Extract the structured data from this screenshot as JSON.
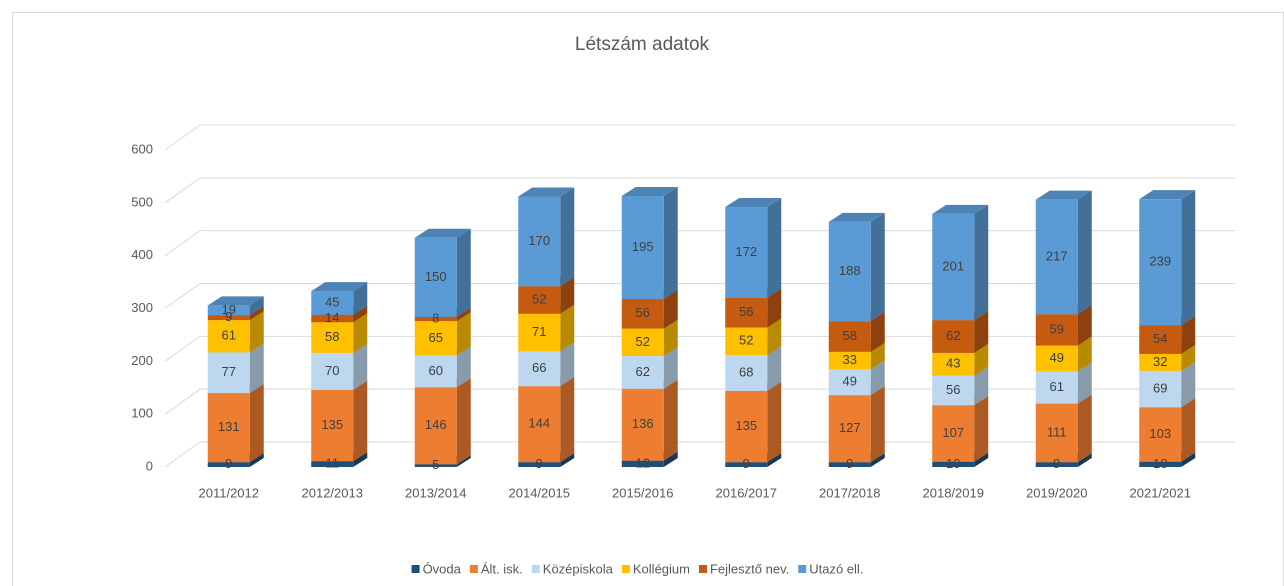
{
  "chart_data": {
    "type": "bar3d_stacked",
    "title": "Létszám adatok",
    "categories": [
      "2011/2012",
      "2012/2013",
      "2013/2014",
      "2014/2015",
      "2015/2016",
      "2016/2017",
      "2017/2018",
      "2018/2019",
      "2019/2020",
      "2021/2021"
    ],
    "series": [
      {
        "name": "Óvoda",
        "color": "#1f4e79",
        "values": [
          9,
          11,
          5,
          9,
          12,
          9,
          9,
          10,
          9,
          10
        ]
      },
      {
        "name": "Ált. isk.",
        "color": "#ed7d31",
        "values": [
          131,
          135,
          146,
          144,
          136,
          135,
          127,
          107,
          111,
          103
        ]
      },
      {
        "name": "Középiskola",
        "color": "#bdd7ee",
        "values": [
          77,
          70,
          60,
          66,
          62,
          68,
          49,
          56,
          61,
          69
        ]
      },
      {
        "name": "Kollégium",
        "color": "#ffc000",
        "values": [
          61,
          58,
          65,
          71,
          52,
          52,
          33,
          43,
          49,
          32
        ]
      },
      {
        "name": "Fejlesztő nev.",
        "color": "#c55a11",
        "values": [
          9,
          14,
          8,
          52,
          56,
          56,
          58,
          62,
          59,
          54
        ]
      },
      {
        "name": "Utazó ell.",
        "color": "#5b9bd5",
        "values": [
          19,
          45,
          150,
          170,
          195,
          172,
          188,
          201,
          217,
          239
        ]
      }
    ],
    "ylim": [
      0,
      600
    ],
    "yticks": [
      0,
      100,
      200,
      300,
      400,
      500,
      600
    ],
    "grid": true,
    "legend": "bottom"
  }
}
